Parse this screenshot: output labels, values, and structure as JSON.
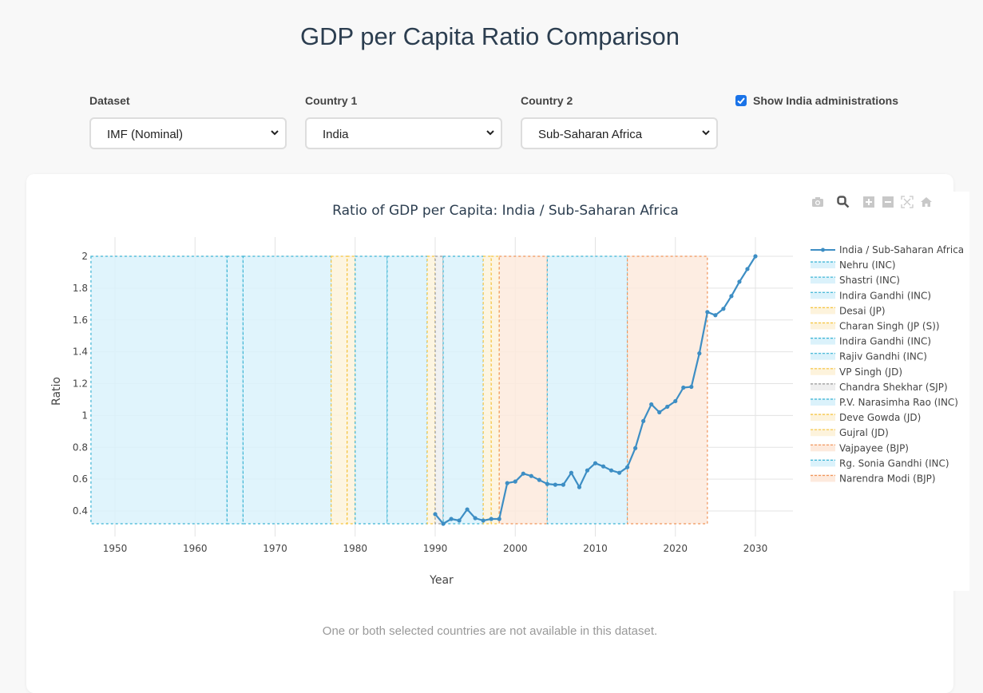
{
  "page": {
    "title": "GDP per Capita Ratio Comparison",
    "message": "One or both selected countries are not available in this dataset."
  },
  "controls": {
    "dataset": {
      "label": "Dataset",
      "value": "IMF (Nominal)"
    },
    "country1": {
      "label": "Country 1",
      "value": "India"
    },
    "country2": {
      "label": "Country 2",
      "value": "Sub-Saharan Africa"
    },
    "show_admin": {
      "label": "Show India administrations",
      "checked": true
    }
  },
  "modebar": [
    "camera-icon",
    "zoom-icon",
    "zoom-in-icon",
    "zoom-out-icon",
    "autoscale-icon",
    "home-icon"
  ],
  "colors": {
    "line": "#3d8ec4",
    "inc_fill": "#dbf2fb",
    "inc_stroke": "#3cb4d4",
    "jp_fill": "#fdf3dc",
    "jp_stroke": "#f5c542",
    "bjp_fill": "#fdeadd",
    "bjp_stroke": "#f0945a",
    "sjp_fill": "#efefef",
    "sjp_stroke": "#9a9a9a"
  },
  "chart_data": {
    "type": "line",
    "title": "Ratio of GDP per Capita: India / Sub-Saharan Africa",
    "xlabel": "Year",
    "ylabel": "Ratio",
    "xlim": [
      1947,
      2035
    ],
    "ylim": [
      0.3,
      2.1
    ],
    "xticks": [
      1950,
      1960,
      1970,
      1980,
      1990,
      2000,
      2010,
      2020,
      2030
    ],
    "yticks": [
      0.4,
      0.6,
      0.8,
      1,
      1.2,
      1.4,
      1.6,
      1.8,
      2
    ],
    "ytick_labels": [
      "0.4",
      "0.6",
      "0.8",
      "1",
      "1.2",
      "1.4",
      "1.6",
      "1.8",
      "2"
    ],
    "grid": true,
    "legend_position": "right",
    "series": [
      {
        "name": "India / Sub-Saharan Africa",
        "x": [
          1990,
          1991,
          1992,
          1993,
          1994,
          1995,
          1996,
          1997,
          1998,
          1999,
          2000,
          2001,
          2002,
          2003,
          2004,
          2005,
          2006,
          2007,
          2008,
          2009,
          2010,
          2011,
          2012,
          2013,
          2014,
          2015,
          2016,
          2017,
          2018,
          2019,
          2020,
          2021,
          2022,
          2023,
          2024,
          2025,
          2026,
          2027,
          2028,
          2029,
          2030
        ],
        "y": [
          0.38,
          0.32,
          0.35,
          0.34,
          0.41,
          0.355,
          0.34,
          0.35,
          0.35,
          0.575,
          0.585,
          0.635,
          0.62,
          0.595,
          0.57,
          0.565,
          0.565,
          0.64,
          0.55,
          0.655,
          0.7,
          0.68,
          0.655,
          0.64,
          0.675,
          0.795,
          0.965,
          1.07,
          1.02,
          1.055,
          1.09,
          1.175,
          1.18,
          1.39,
          1.65,
          1.63,
          1.67,
          1.75,
          1.84,
          1.92,
          2.0
        ]
      }
    ],
    "administrations": {
      "y_range": [
        0.32,
        2.0
      ],
      "items": [
        {
          "name": "Nehru (INC)",
          "start": 1947,
          "end": 1964,
          "party": "inc"
        },
        {
          "name": "Shastri (INC)",
          "start": 1964,
          "end": 1966,
          "party": "inc"
        },
        {
          "name": "Indira Gandhi (INC)",
          "start": 1966,
          "end": 1977,
          "party": "inc"
        },
        {
          "name": "Desai (JP)",
          "start": 1977,
          "end": 1979,
          "party": "jp"
        },
        {
          "name": "Charan Singh (JP (S))",
          "start": 1979,
          "end": 1980,
          "party": "jp"
        },
        {
          "name": "Indira Gandhi (INC)",
          "start": 1980,
          "end": 1984,
          "party": "inc"
        },
        {
          "name": "Rajiv Gandhi (INC)",
          "start": 1984,
          "end": 1989,
          "party": "inc"
        },
        {
          "name": "VP Singh (JD)",
          "start": 1989,
          "end": 1990,
          "party": "jp"
        },
        {
          "name": "Chandra Shekhar (SJP)",
          "start": 1990,
          "end": 1991,
          "party": "sjp"
        },
        {
          "name": "P.V. Narasimha Rao (INC)",
          "start": 1991,
          "end": 1996,
          "party": "inc"
        },
        {
          "name": "Deve Gowda (JD)",
          "start": 1996,
          "end": 1997,
          "party": "jp"
        },
        {
          "name": "Gujral (JD)",
          "start": 1997,
          "end": 1998,
          "party": "jp"
        },
        {
          "name": "Vajpayee (BJP)",
          "start": 1998,
          "end": 2004,
          "party": "bjp"
        },
        {
          "name": "Rg. Sonia Gandhi (INC)",
          "start": 2004,
          "end": 2014,
          "party": "inc"
        },
        {
          "name": "Narendra Modi (BJP)",
          "start": 2014,
          "end": 2024,
          "party": "bjp"
        }
      ]
    }
  }
}
